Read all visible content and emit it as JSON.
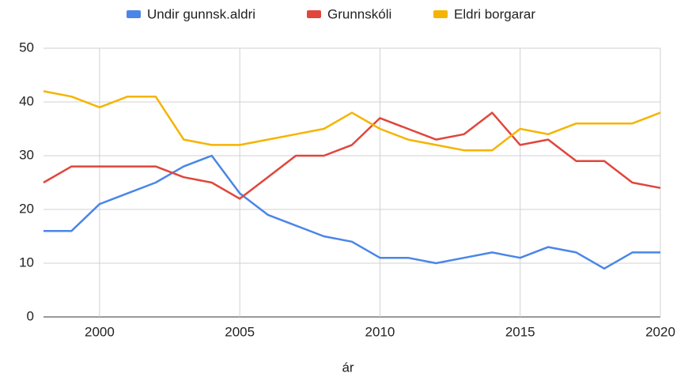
{
  "chart_data": {
    "type": "line",
    "x_label": "ár",
    "x": [
      1998,
      1999,
      2000,
      2001,
      2002,
      2003,
      2004,
      2005,
      2006,
      2007,
      2008,
      2009,
      2010,
      2011,
      2012,
      2013,
      2014,
      2015,
      2016,
      2017,
      2018,
      2019,
      2020
    ],
    "series": [
      {
        "name": "Undir gunnsk.aldri",
        "color": "#4a86e8",
        "values": [
          16,
          16,
          21,
          23,
          25,
          28,
          30,
          23,
          19,
          17,
          15,
          14,
          11,
          11,
          10,
          11,
          12,
          11,
          13,
          12,
          9,
          12,
          12
        ]
      },
      {
        "name": "Grunnskóli",
        "color": "#e0463b",
        "values": [
          25,
          28,
          28,
          28,
          28,
          26,
          25,
          22,
          26,
          30,
          30,
          32,
          37,
          35,
          33,
          34,
          38,
          32,
          33,
          29,
          29,
          25,
          24
        ]
      },
      {
        "name": "Eldri borgarar",
        "color": "#f5b400",
        "values": [
          42,
          41,
          39,
          41,
          41,
          33,
          32,
          32,
          33,
          34,
          35,
          38,
          35,
          33,
          32,
          31,
          31,
          35,
          34,
          36,
          36,
          36,
          38
        ]
      }
    ],
    "xlim": [
      1998,
      2020
    ],
    "xticks": [
      2000,
      2005,
      2010,
      2015,
      2020
    ],
    "ylim": [
      0,
      50
    ],
    "yticks": [
      0,
      10,
      20,
      30,
      40,
      50
    ],
    "grid": true,
    "legend": "top"
  }
}
